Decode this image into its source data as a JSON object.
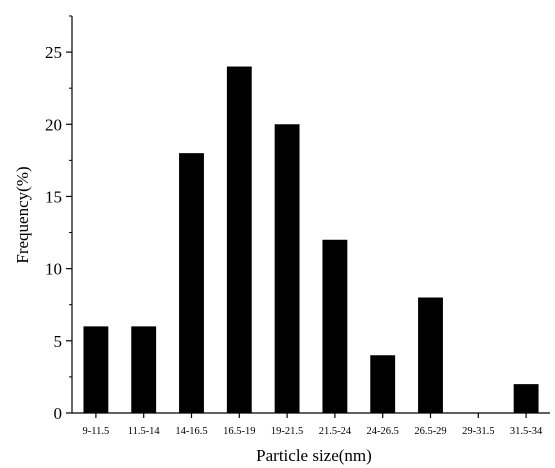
{
  "chart_data": {
    "type": "bar",
    "categories": [
      "9-11.5",
      "11.5-14",
      "14-16.5",
      "16.5-19",
      "19-21.5",
      "21.5-24",
      "24-26.5",
      "26.5-29",
      "29-31.5",
      "31.5-34"
    ],
    "values": [
      6,
      6,
      18,
      24,
      20,
      12,
      4,
      8,
      0,
      2
    ],
    "xlabel": "Particle size(nm)",
    "ylabel": "Frequency(%)",
    "ylim": [
      0,
      27.5
    ],
    "yticks": [
      0,
      5,
      10,
      15,
      20,
      25
    ],
    "grid": false,
    "bar_color": "#000000"
  }
}
